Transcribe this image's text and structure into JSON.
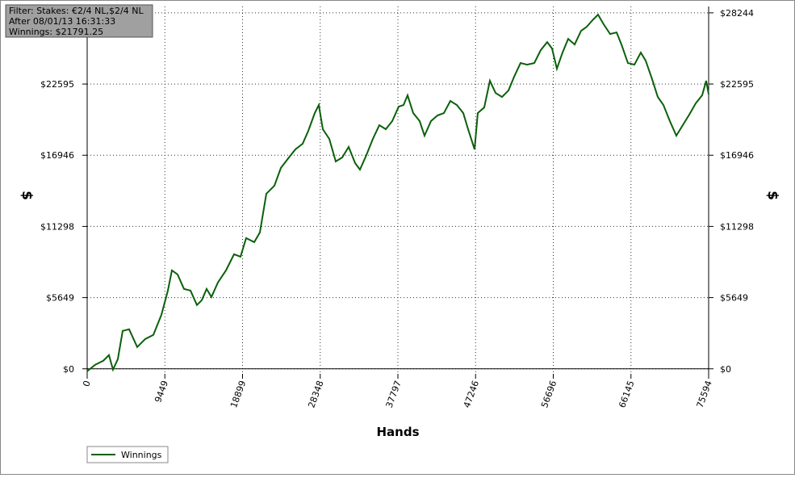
{
  "chart_data": {
    "type": "line",
    "info_lines": [
      "Filter: Stakes: €2/4 NL,$2/4 NL",
      "After 08/01/13 16:31:33",
      "Winnings: $21791.25"
    ],
    "x_label": "Hands",
    "y_label": "$",
    "xlim": [
      0,
      75594
    ],
    "ylim": [
      -400,
      28750
    ],
    "xticks": [
      0,
      9449,
      18899,
      28348,
      37797,
      47246,
      56696,
      66145,
      75594
    ],
    "yticks": [
      {
        "value": 0,
        "label": "$0"
      },
      {
        "value": 5649,
        "label": "$5649"
      },
      {
        "value": 11298,
        "label": "$11298"
      },
      {
        "value": 16946,
        "label": "$16946"
      },
      {
        "value": 22595,
        "label": "$22595"
      },
      {
        "value": 28244,
        "label": "$28244"
      }
    ],
    "grid": true,
    "legend": "bottom-left",
    "x": [
      0,
      982,
      1963,
      2651,
      3141,
      3730,
      4319,
      5105,
      6087,
      7068,
      8050,
      9032,
      9817,
      10308,
      10995,
      11780,
      12566,
      13351,
      13940,
      14529,
      15118,
      15904,
      16886,
      17867,
      18652,
      19339,
      20321,
      21008,
      21794,
      22775,
      23561,
      24543,
      25328,
      26211,
      26899,
      27684,
      28175,
      28666,
      29451,
      30236,
      31022,
      31807,
      32592,
      33181,
      33967,
      34752,
      35537,
      36323,
      37108,
      37893,
      38482,
      38973,
      39660,
      40445,
      41034,
      41820,
      42605,
      43390,
      44176,
      44961,
      45746,
      46336,
      47121,
      47514,
      48299,
      48987,
      49674,
      50459,
      51245,
      51932,
      52717,
      53503,
      54386,
      55172,
      55957,
      56546,
      57135,
      57822,
      58509,
      59295,
      60080,
      60767,
      61454,
      62141,
      62828,
      63614,
      64399,
      64988,
      65774,
      66559,
      67344,
      67933,
      68719,
      69406,
      70093,
      70878,
      71664,
      72449,
      73234,
      74020,
      74805,
      75296,
      75594
    ],
    "series": [
      {
        "name": "Winnings",
        "color": "#0a600a",
        "values": [
          -192,
          320,
          640,
          1088,
          -64,
          768,
          3008,
          3136,
          1728,
          2368,
          2688,
          4289,
          6209,
          7809,
          7489,
          6337,
          6209,
          5057,
          5441,
          6337,
          5697,
          6849,
          7809,
          9089,
          8897,
          10370,
          10050,
          10818,
          13890,
          14530,
          15938,
          16771,
          17411,
          17859,
          18883,
          20291,
          20931,
          19011,
          18243,
          16451,
          16771,
          17603,
          16323,
          15810,
          16963,
          18243,
          19331,
          19011,
          19651,
          20803,
          20931,
          21699,
          20291,
          19651,
          18499,
          19651,
          20099,
          20291,
          21251,
          20931,
          20291,
          19011,
          17411,
          20291,
          20739,
          22852,
          21891,
          21571,
          22083,
          23172,
          24260,
          24132,
          24260,
          25284,
          25924,
          25412,
          23812,
          25092,
          26180,
          25732,
          26820,
          27140,
          27652,
          28100,
          27332,
          26564,
          26692,
          25732,
          24260,
          24132,
          25092,
          24452,
          22980,
          21571,
          20931,
          19651,
          18499,
          19331,
          20163,
          21059,
          21699,
          22852,
          21791
        ]
      }
    ]
  }
}
